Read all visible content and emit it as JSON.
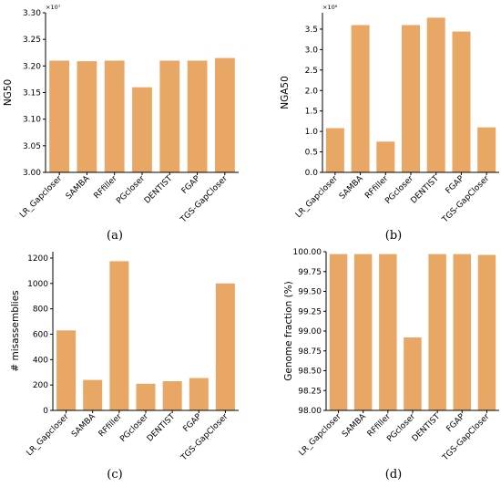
{
  "chart_data": [
    {
      "type": "bar",
      "caption": "(a)",
      "ylabel": "NG50",
      "multiplier": "×10⁷",
      "categories": [
        "LR_Gapcloser",
        "SAMBA",
        "RFfiller",
        "PGcloser",
        "DENTIST",
        "FGAP",
        "TGS-GapCloser"
      ],
      "values": [
        3.21,
        3.209,
        3.21,
        3.16,
        3.21,
        3.21,
        3.215
      ],
      "ylim": [
        3.0,
        3.3
      ],
      "yticks": [
        "3.00",
        "3.05",
        "3.10",
        "3.15",
        "3.20",
        "3.25",
        "3.30"
      ],
      "color": "#E9A765"
    },
    {
      "type": "bar",
      "caption": "(b)",
      "ylabel": "NGA50",
      "multiplier": "×10⁶",
      "categories": [
        "LR_Gapcloser",
        "SAMBA",
        "RFfiller",
        "PGcloser",
        "DENTIST",
        "FGAP",
        "TGS-GapCloser"
      ],
      "values": [
        1.08,
        3.6,
        0.75,
        3.6,
        3.78,
        3.44,
        1.1
      ],
      "ylim": [
        0,
        3.9
      ],
      "yticks": [
        "0.0",
        "0.5",
        "1.0",
        "1.5",
        "2.0",
        "2.5",
        "3.0",
        "3.5"
      ],
      "color": "#E9A765"
    },
    {
      "type": "bar",
      "caption": "(c)",
      "ylabel": "# misassemblies",
      "multiplier": "",
      "categories": [
        "LR_Gapcloser",
        "SAMBA",
        "RFfiller",
        "PGcloser",
        "DENTIST",
        "FGAP",
        "TGS-GapCloser"
      ],
      "values": [
        630,
        240,
        1175,
        210,
        230,
        255,
        1000
      ],
      "ylim": [
        0,
        1250
      ],
      "yticks": [
        "0",
        "200",
        "400",
        "600",
        "800",
        "1000",
        "1200"
      ],
      "color": "#E9A765"
    },
    {
      "type": "bar",
      "caption": "(d)",
      "ylabel": "Genome fraction (%)",
      "multiplier": "",
      "categories": [
        "LR_Gapcloser",
        "SAMBA",
        "RFfiller",
        "PGcloser",
        "DENTIST",
        "FGAP",
        "TGS-GapCloser"
      ],
      "values": [
        99.97,
        99.97,
        99.97,
        98.92,
        99.97,
        99.97,
        99.96
      ],
      "ylim": [
        98.0,
        100.0
      ],
      "yticks": [
        "98.00",
        "98.25",
        "98.50",
        "98.75",
        "99.00",
        "99.25",
        "99.50",
        "99.75",
        "100.00"
      ],
      "color": "#E9A765"
    }
  ]
}
